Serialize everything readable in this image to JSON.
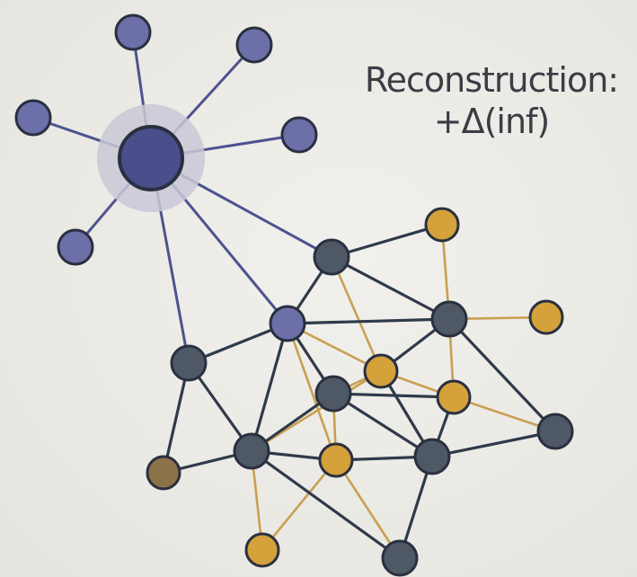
{
  "annotation": {
    "line1": "Reconstruction:",
    "line2": "+Δ(inf)"
  },
  "colors": {
    "hub": "#4a4f8c",
    "hub_halo": "#c9c8d6",
    "purple_node": "#6c6fa8",
    "slate_node": "#4f5966",
    "gold_node": "#d4a13a",
    "brown_node": "#8c7248",
    "dark_edge": "#2f3a4a",
    "purple_edge": "#4d5390",
    "gold_edge": "#c9a052",
    "node_stroke": "#2a3040"
  },
  "nodes": [
    {
      "id": "hub",
      "kind": "hub"
    },
    {
      "id": "p1",
      "kind": "purple"
    },
    {
      "id": "p2",
      "kind": "purple"
    },
    {
      "id": "p3",
      "kind": "purple"
    },
    {
      "id": "p4",
      "kind": "purple"
    },
    {
      "id": "p5",
      "kind": "purple"
    },
    {
      "id": "n1",
      "kind": "slate"
    },
    {
      "id": "n2",
      "kind": "purple"
    },
    {
      "id": "n3",
      "kind": "slate"
    },
    {
      "id": "n4",
      "kind": "slate"
    },
    {
      "id": "n5",
      "kind": "slate"
    },
    {
      "id": "n6",
      "kind": "slate"
    },
    {
      "id": "n7",
      "kind": "slate"
    },
    {
      "id": "n8",
      "kind": "slate"
    },
    {
      "id": "n9",
      "kind": "slate"
    },
    {
      "id": "g1",
      "kind": "gold"
    },
    {
      "id": "g2",
      "kind": "gold"
    },
    {
      "id": "g3",
      "kind": "gold"
    },
    {
      "id": "g4",
      "kind": "gold"
    },
    {
      "id": "g5",
      "kind": "gold"
    },
    {
      "id": "g6",
      "kind": "gold"
    },
    {
      "id": "b1",
      "kind": "brown"
    }
  ],
  "edges": [
    {
      "from": "hub",
      "to": "p1",
      "kind": "purple"
    },
    {
      "from": "hub",
      "to": "p2",
      "kind": "purple"
    },
    {
      "from": "hub",
      "to": "p3",
      "kind": "purple"
    },
    {
      "from": "hub",
      "to": "p4",
      "kind": "purple"
    },
    {
      "from": "hub",
      "to": "p5",
      "kind": "purple"
    },
    {
      "from": "hub",
      "to": "n1",
      "kind": "purple"
    },
    {
      "from": "hub",
      "to": "n2",
      "kind": "purple"
    },
    {
      "from": "hub",
      "to": "n3",
      "kind": "purple"
    },
    {
      "from": "n1",
      "to": "g1",
      "kind": "dark"
    },
    {
      "from": "n1",
      "to": "n2",
      "kind": "dark"
    },
    {
      "from": "n1",
      "to": "n4",
      "kind": "dark"
    },
    {
      "from": "n1",
      "to": "g3",
      "kind": "gold"
    },
    {
      "from": "g1",
      "to": "n4",
      "kind": "gold"
    },
    {
      "from": "n2",
      "to": "n4",
      "kind": "dark"
    },
    {
      "from": "n2",
      "to": "n3",
      "kind": "dark"
    },
    {
      "from": "n2",
      "to": "n6",
      "kind": "dark"
    },
    {
      "from": "n2",
      "to": "n5",
      "kind": "dark"
    },
    {
      "from": "n2",
      "to": "g3",
      "kind": "gold"
    },
    {
      "from": "n2",
      "to": "g5",
      "kind": "gold"
    },
    {
      "from": "n4",
      "to": "g2",
      "kind": "gold"
    },
    {
      "from": "n4",
      "to": "g3",
      "kind": "dark"
    },
    {
      "from": "n4",
      "to": "g4",
      "kind": "gold"
    },
    {
      "from": "n4",
      "to": "n9",
      "kind": "dark"
    },
    {
      "from": "n3",
      "to": "n6",
      "kind": "dark"
    },
    {
      "from": "n3",
      "to": "b1",
      "kind": "dark"
    },
    {
      "from": "b1",
      "to": "n6",
      "kind": "dark"
    },
    {
      "from": "n5",
      "to": "g3",
      "kind": "gold"
    },
    {
      "from": "n5",
      "to": "n6",
      "kind": "dark"
    },
    {
      "from": "n5",
      "to": "g5",
      "kind": "gold"
    },
    {
      "from": "n5",
      "to": "n7",
      "kind": "dark"
    },
    {
      "from": "n5",
      "to": "g4",
      "kind": "dark"
    },
    {
      "from": "g3",
      "to": "g4",
      "kind": "gold"
    },
    {
      "from": "g3",
      "to": "n6",
      "kind": "gold"
    },
    {
      "from": "g3",
      "to": "n7",
      "kind": "dark"
    },
    {
      "from": "g4",
      "to": "n9",
      "kind": "gold"
    },
    {
      "from": "g4",
      "to": "n7",
      "kind": "dark"
    },
    {
      "from": "n6",
      "to": "g5",
      "kind": "dark"
    },
    {
      "from": "n6",
      "to": "g6",
      "kind": "gold"
    },
    {
      "from": "n6",
      "to": "n8",
      "kind": "dark"
    },
    {
      "from": "g5",
      "to": "n7",
      "kind": "dark"
    },
    {
      "from": "g5",
      "to": "g6",
      "kind": "gold"
    },
    {
      "from": "g5",
      "to": "n8",
      "kind": "gold"
    },
    {
      "from": "n7",
      "to": "n9",
      "kind": "dark"
    },
    {
      "from": "n7",
      "to": "n8",
      "kind": "dark"
    }
  ]
}
